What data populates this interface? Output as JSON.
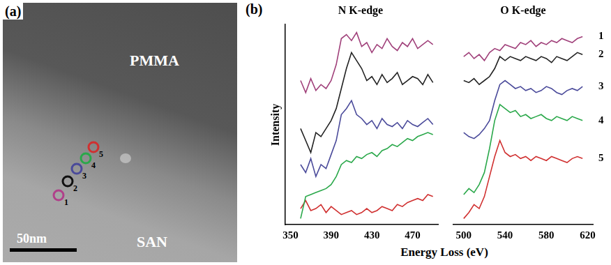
{
  "panel_a": {
    "letter": "(a)",
    "labels": [
      "PMMA",
      "SAN"
    ],
    "scale_bar": "50nm",
    "markers": [
      {
        "label": "1",
        "color": "#b0408a"
      },
      {
        "label": "2",
        "color": "#111111"
      },
      {
        "label": "3",
        "color": "#4a4a9a"
      },
      {
        "label": "4",
        "color": "#2aa84a"
      },
      {
        "label": "5",
        "color": "#d03030"
      }
    ]
  },
  "panel_b": {
    "letter": "(b)",
    "y_label": "Intensity",
    "x_label": "Energy Loss (eV)"
  },
  "chart_data": [
    {
      "type": "line",
      "title": "N K-edge",
      "x": [
        360,
        365,
        370,
        375,
        380,
        385,
        390,
        395,
        400,
        405,
        410,
        415,
        420,
        425,
        430,
        435,
        440,
        445,
        450,
        455,
        460,
        465,
        470,
        475,
        480,
        485,
        490
      ],
      "xlim": [
        345,
        495
      ],
      "xticks": [
        350,
        390,
        430,
        470
      ],
      "ylim": [
        0,
        100
      ],
      "tick_labels": "x",
      "grid": false,
      "series": [
        {
          "name": "1",
          "color": "#a0407a",
          "values": [
            72,
            66,
            73,
            67,
            70,
            68,
            72,
            80,
            93,
            95,
            92,
            96,
            89,
            91,
            86,
            90,
            88,
            93,
            89,
            87,
            91,
            89,
            93,
            88,
            90,
            92,
            90
          ]
        },
        {
          "name": "2",
          "color": "#222222",
          "values": [
            48,
            42,
            36,
            46,
            44,
            48,
            52,
            58,
            68,
            78,
            86,
            82,
            78,
            72,
            74,
            70,
            75,
            71,
            73,
            76,
            70,
            72,
            74,
            73,
            70,
            75,
            71
          ]
        },
        {
          "name": "3",
          "color": "#4a4a9a",
          "values": [
            30,
            26,
            33,
            24,
            30,
            28,
            35,
            42,
            55,
            58,
            62,
            55,
            53,
            50,
            52,
            48,
            53,
            50,
            49,
            51,
            48,
            52,
            50,
            49,
            51,
            53,
            50
          ]
        },
        {
          "name": "4",
          "color": "#2aa84a",
          "values": [
            3,
            14,
            15,
            16,
            17,
            18,
            20,
            24,
            30,
            32,
            31,
            34,
            33,
            35,
            36,
            34,
            37,
            38,
            40,
            39,
            41,
            43,
            42,
            44,
            45,
            46,
            45
          ]
        },
        {
          "name": "5",
          "color": "#d03030",
          "values": [
            8,
            12,
            7,
            8,
            10,
            6,
            9,
            7,
            5,
            6,
            7,
            5,
            6,
            8,
            6,
            7,
            9,
            8,
            7,
            10,
            9,
            11,
            12,
            13,
            12,
            15,
            14
          ]
        }
      ]
    },
    {
      "type": "line",
      "title": "O K-edge",
      "x": [
        500,
        505,
        510,
        515,
        520,
        525,
        530,
        535,
        540,
        545,
        550,
        555,
        560,
        565,
        570,
        575,
        580,
        585,
        590,
        595,
        600,
        605,
        610,
        615
      ],
      "xlim": [
        490,
        625
      ],
      "xticks": [
        500,
        540,
        580,
        620
      ],
      "ylim": [
        0,
        100
      ],
      "tick_labels": "x",
      "grid": false,
      "series": [
        {
          "name": "1",
          "color": "#a0407a",
          "values": [
            84,
            86,
            83,
            85,
            82,
            86,
            88,
            87,
            90,
            89,
            88,
            91,
            90,
            92,
            89,
            91,
            90,
            92,
            91,
            93,
            92,
            91,
            93,
            94
          ]
        },
        {
          "name": "2",
          "color": "#222222",
          "values": [
            72,
            71,
            73,
            70,
            72,
            74,
            78,
            84,
            82,
            84,
            83,
            82,
            84,
            83,
            82,
            84,
            83,
            81,
            84,
            83,
            82,
            84,
            86,
            85
          ]
        },
        {
          "name": "3",
          "color": "#4a4a9a",
          "values": [
            46,
            44,
            43,
            45,
            48,
            52,
            62,
            70,
            72,
            70,
            68,
            69,
            67,
            68,
            66,
            67,
            69,
            68,
            66,
            65,
            67,
            68,
            67,
            69
          ]
        },
        {
          "name": "4",
          "color": "#2aa84a",
          "values": [
            15,
            18,
            16,
            20,
            26,
            38,
            52,
            60,
            58,
            56,
            57,
            54,
            55,
            53,
            54,
            55,
            53,
            52,
            54,
            53,
            52,
            54,
            53,
            52
          ]
        },
        {
          "name": "5",
          "color": "#d03030",
          "values": [
            3,
            6,
            10,
            8,
            14,
            24,
            34,
            42,
            36,
            34,
            35,
            33,
            34,
            32,
            34,
            33,
            32,
            34,
            33,
            32,
            31,
            33,
            34,
            33
          ]
        }
      ]
    }
  ]
}
